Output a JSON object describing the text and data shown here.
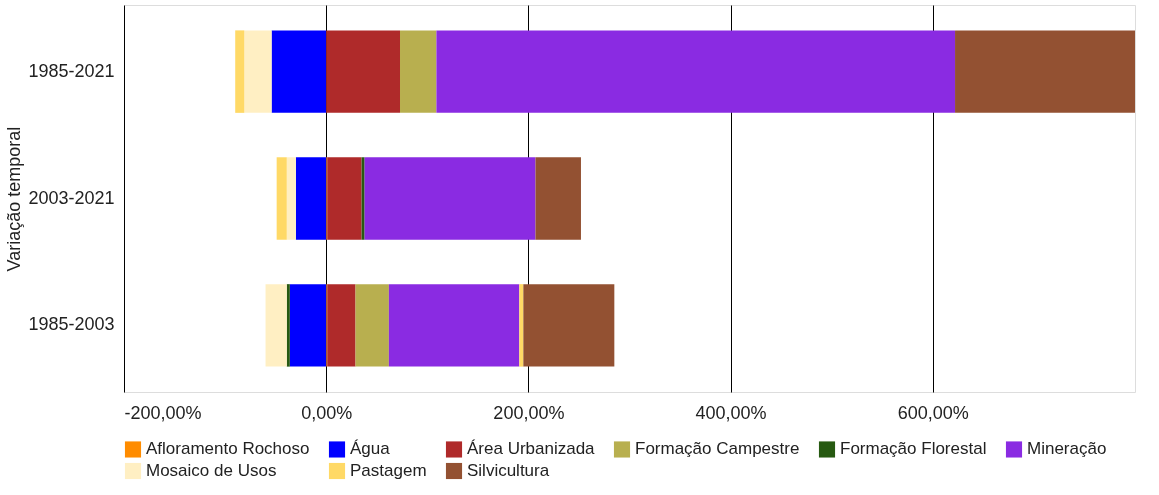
{
  "chart_data": {
    "type": "bar",
    "orientation": "horizontal",
    "stacked": true,
    "ylabel": "Variação temporal",
    "categories": [
      "1985-2021",
      "2003-2021",
      "1985-2003"
    ],
    "series": [
      {
        "name": "Afloramento Rochoso",
        "color": "#ff8c00",
        "values": [
          null,
          1,
          1
        ]
      },
      {
        "name": "Água",
        "color": "#0000ff",
        "values": [
          -54,
          -30,
          -36
        ]
      },
      {
        "name": "Área Urbanizada",
        "color": "#af2a2a",
        "values": [
          73,
          34,
          28
        ]
      },
      {
        "name": "Formação Campestre",
        "color": "#b8af4f",
        "values": [
          36,
          null,
          33
        ]
      },
      {
        "name": "Formação Florestal",
        "color": "#275a12",
        "values": [
          null,
          3,
          -3
        ]
      },
      {
        "name": "Mineração",
        "color": "#8a2be2",
        "values": [
          513,
          169,
          129
        ]
      },
      {
        "name": "Mosaico de Usos",
        "color": "#ffefc3",
        "values": [
          -27,
          -9,
          -21
        ]
      },
      {
        "name": "Pastagem",
        "color": "#ffd966",
        "values": [
          -9,
          -10,
          4
        ]
      },
      {
        "name": "Silvicultura",
        "color": "#935132",
        "values": [
          178,
          45,
          90
        ]
      }
    ],
    "xlim": [
      -200,
      800
    ],
    "xticks": [
      {
        "value": -200,
        "label": "-200,00%"
      },
      {
        "value": 0,
        "label": "0,00%"
      },
      {
        "value": 200,
        "label": "200,00%"
      },
      {
        "value": 400,
        "label": "400,00%"
      },
      {
        "value": 600,
        "label": "600,00%"
      }
    ],
    "grid": "x",
    "legend": "bottom"
  }
}
